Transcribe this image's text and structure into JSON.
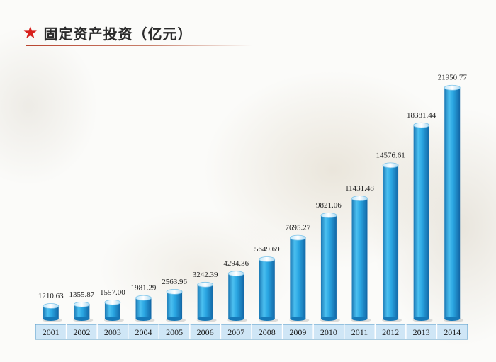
{
  "header": {
    "title": "固定资产投资（亿元）"
  },
  "chart_data": {
    "type": "bar",
    "title": "固定资产投资（亿元）",
    "categories": [
      "2001",
      "2002",
      "2003",
      "2004",
      "2005",
      "2006",
      "2007",
      "2008",
      "2009",
      "2010",
      "2011",
      "2012",
      "2013",
      "2014"
    ],
    "values": [
      1210.63,
      1355.87,
      1557.0,
      1981.29,
      2563.96,
      3242.39,
      4294.36,
      5649.69,
      7695.27,
      9821.06,
      11431.48,
      14576.61,
      18381.44,
      21950.77
    ],
    "value_labels": [
      "1210.63",
      "1355.87",
      "1557.00",
      "1981.29",
      "2563.96",
      "3242.39",
      "4294.36",
      "5649.69",
      "7695.27",
      "9821.06",
      "11431.48",
      "14576.61",
      "18381.44",
      "21950.77"
    ],
    "ylim": [
      0,
      22000
    ],
    "grid": false,
    "legend": "none",
    "colors": {
      "bar": "#29a3dd",
      "bar_dark": "#1679b8",
      "axis_band": "#cfe6f6",
      "axis_border": "#5a9cc8",
      "star": "#d8201c"
    }
  }
}
